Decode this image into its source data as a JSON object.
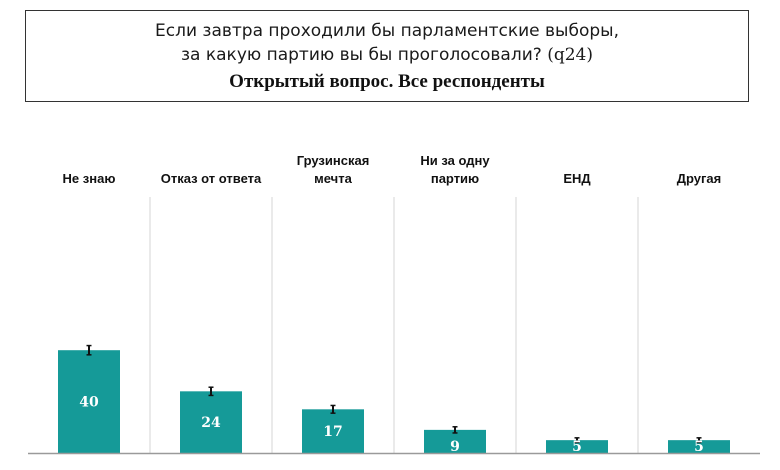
{
  "header": {
    "question_line1": "Если завтра проходили бы парламентские выборы,",
    "question_line2": "за какую партию вы бы проголосовали?",
    "question_code": "(q24)",
    "subtitle": "Открытый вопрос. Все респонденты"
  },
  "colors": {
    "bar": "#159a98",
    "divider": "#d4d4d4",
    "baseline": "#9a9a9a",
    "error_bar": "#111111"
  },
  "chart_data": {
    "type": "bar",
    "title": "Если завтра проходили бы парламентские выборы, за какую партию вы бы проголосовали? (q24)",
    "subtitle": "Открытый вопрос. Все респонденты",
    "categories": [
      [
        "Не знаю"
      ],
      [
        "Отказ от ответа"
      ],
      [
        "Грузинская",
        "мечта"
      ],
      [
        "Ни за одну",
        "партию"
      ],
      [
        "ЕНД"
      ],
      [
        "Другая"
      ]
    ],
    "values": [
      40,
      24,
      17,
      9,
      5,
      5
    ],
    "error_margin": [
      1.8,
      1.6,
      1.5,
      1.2,
      0.9,
      0.9
    ],
    "ylim": [
      0,
      100
    ],
    "grid": false,
    "data_labels": true,
    "xlabel": "",
    "ylabel": ""
  }
}
